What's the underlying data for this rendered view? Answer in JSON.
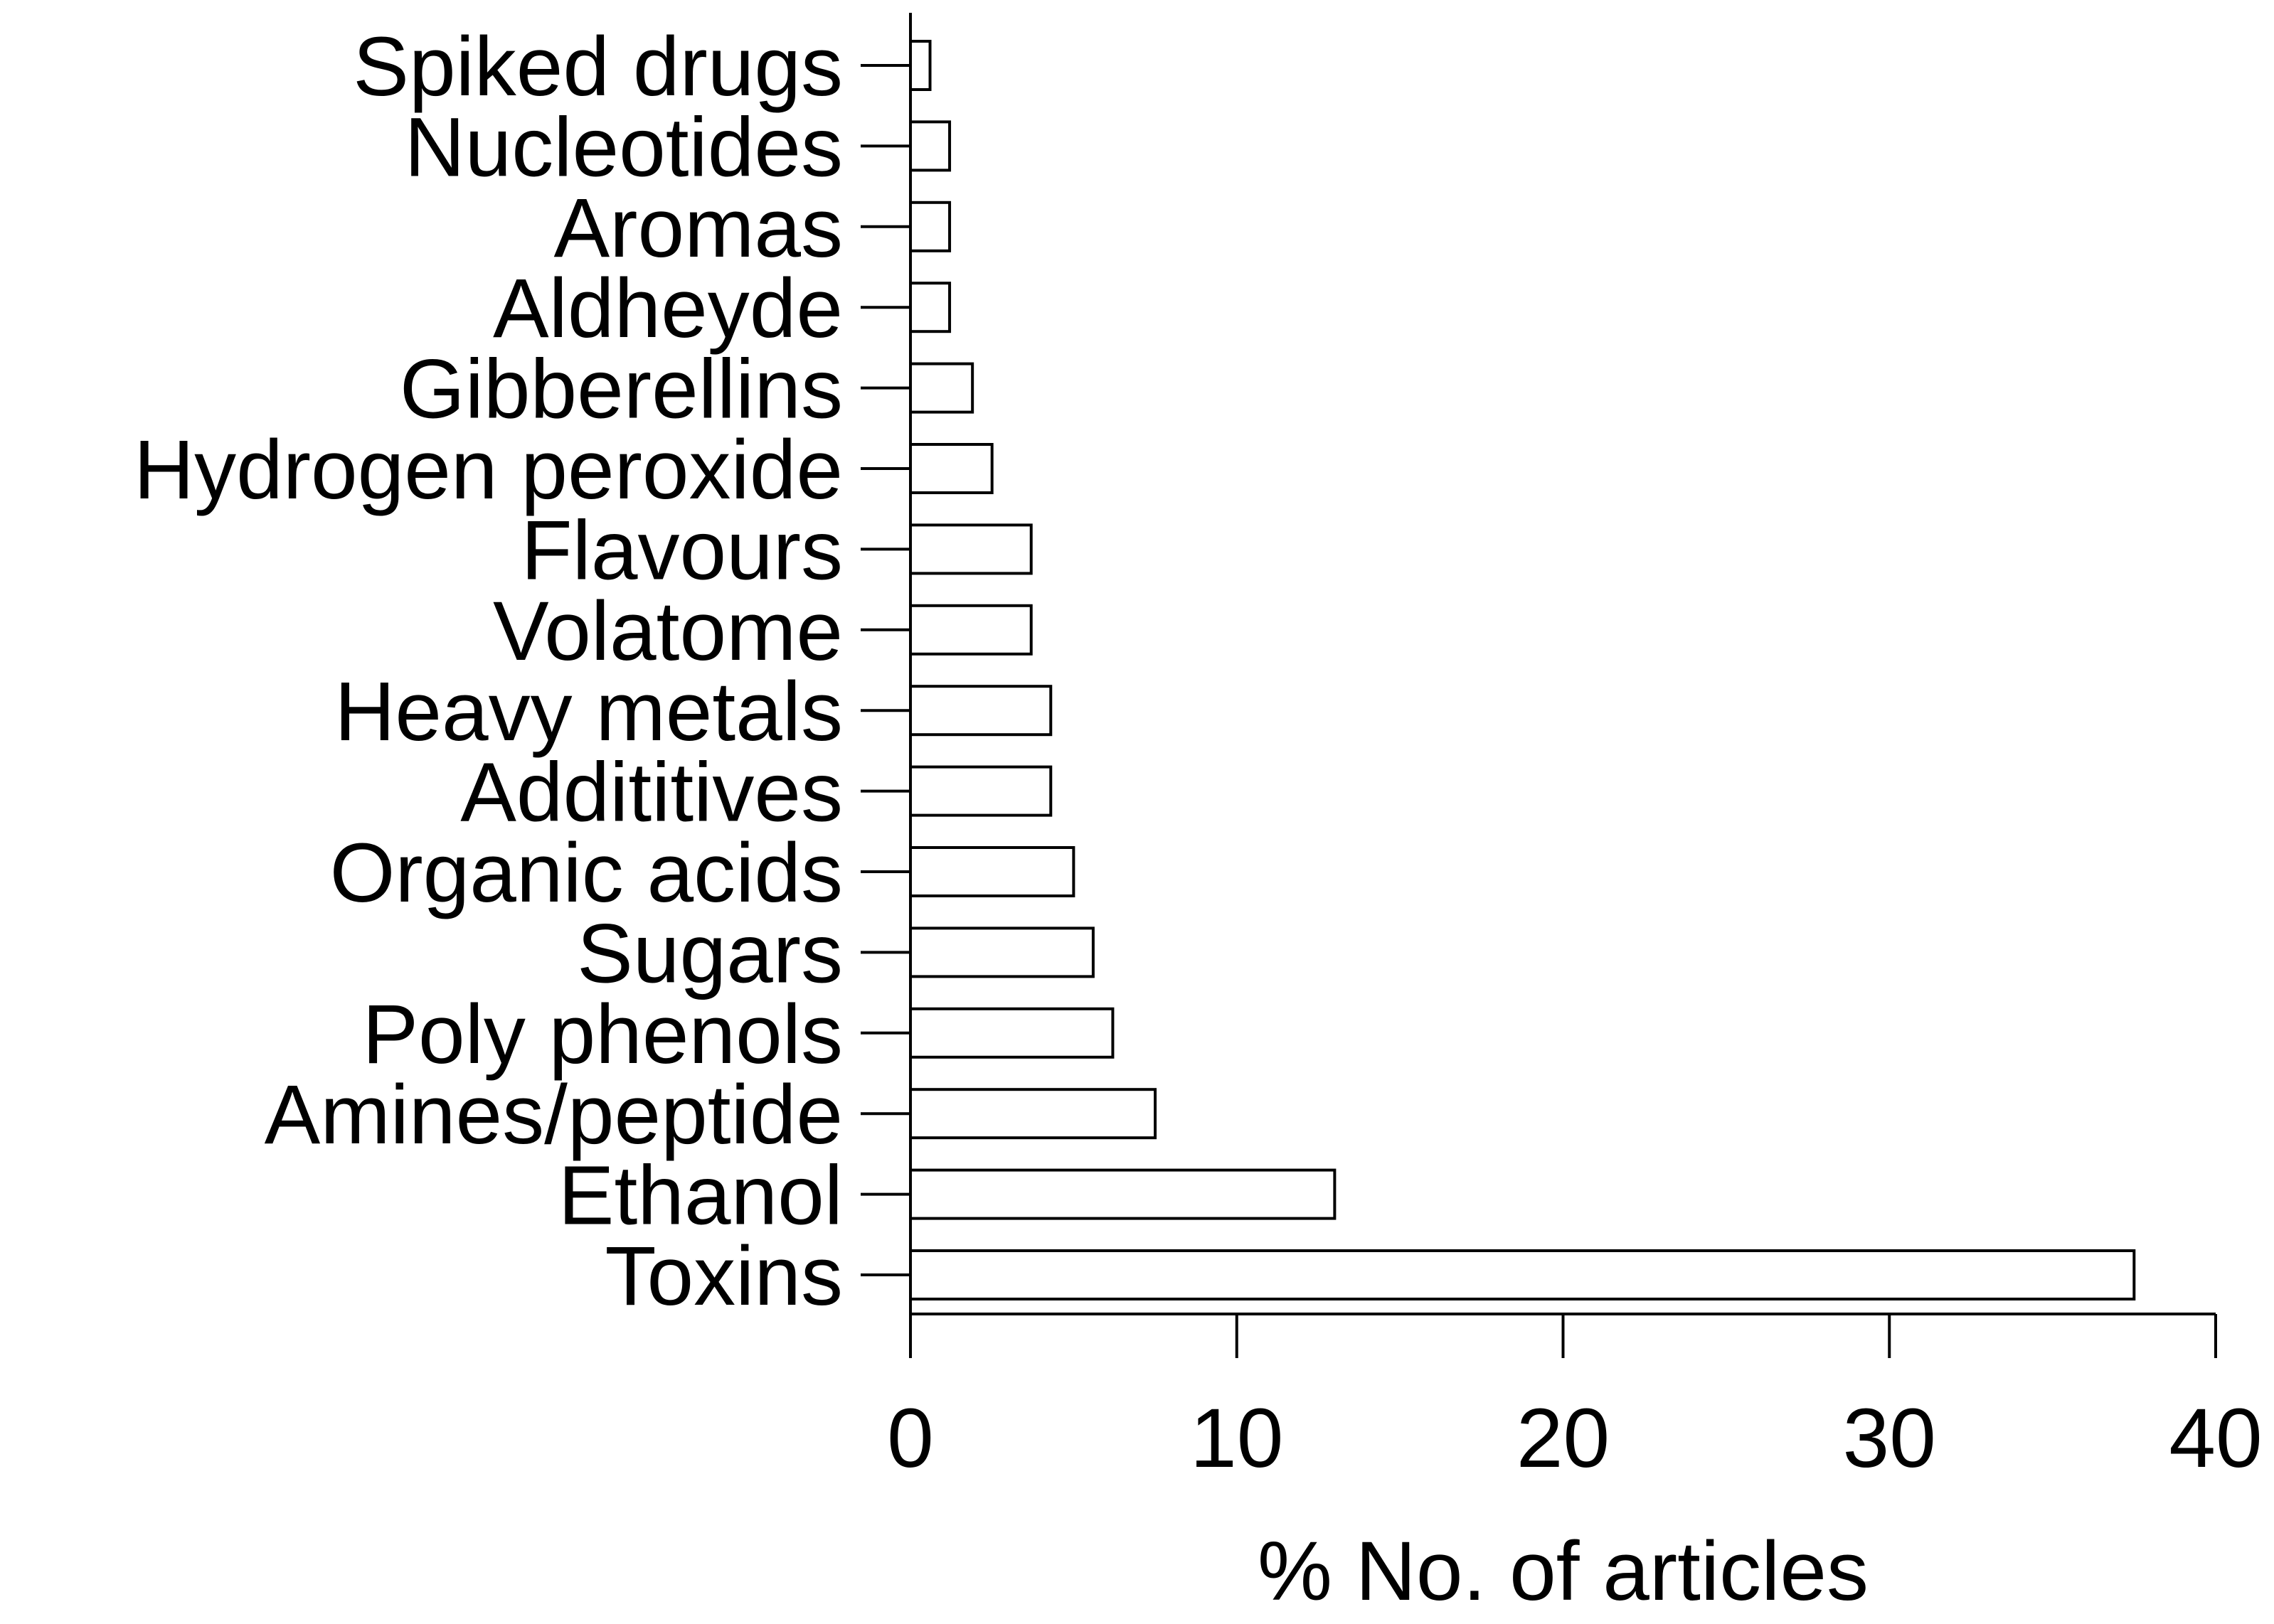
{
  "chart_data": {
    "type": "bar",
    "orientation": "horizontal",
    "title": "",
    "ylabel": "",
    "xlabel": "% No. of articles",
    "xlim": [
      0,
      40
    ],
    "xticks": [
      0,
      10,
      20,
      30,
      40
    ],
    "grid": false,
    "categories": [
      "Spiked drugs",
      "Nucleotides",
      "Aromas",
      "Aldheyde",
      "Gibberellins",
      "Hydrogen peroxide",
      "Flavours",
      "Volatome",
      "Heavy metals",
      "Addititives",
      "Organic acids",
      "Sugars",
      "Poly phenols",
      "Amines/peptide",
      "Ethanol",
      "Toxins"
    ],
    "values": [
      0.6,
      1.2,
      1.2,
      1.2,
      1.9,
      2.5,
      3.7,
      3.7,
      4.3,
      4.3,
      5.0,
      5.6,
      6.2,
      7.5,
      13.0,
      37.5
    ],
    "colors": {
      "bar_fill": "#ffffff",
      "bar_stroke": "#000000"
    }
  }
}
